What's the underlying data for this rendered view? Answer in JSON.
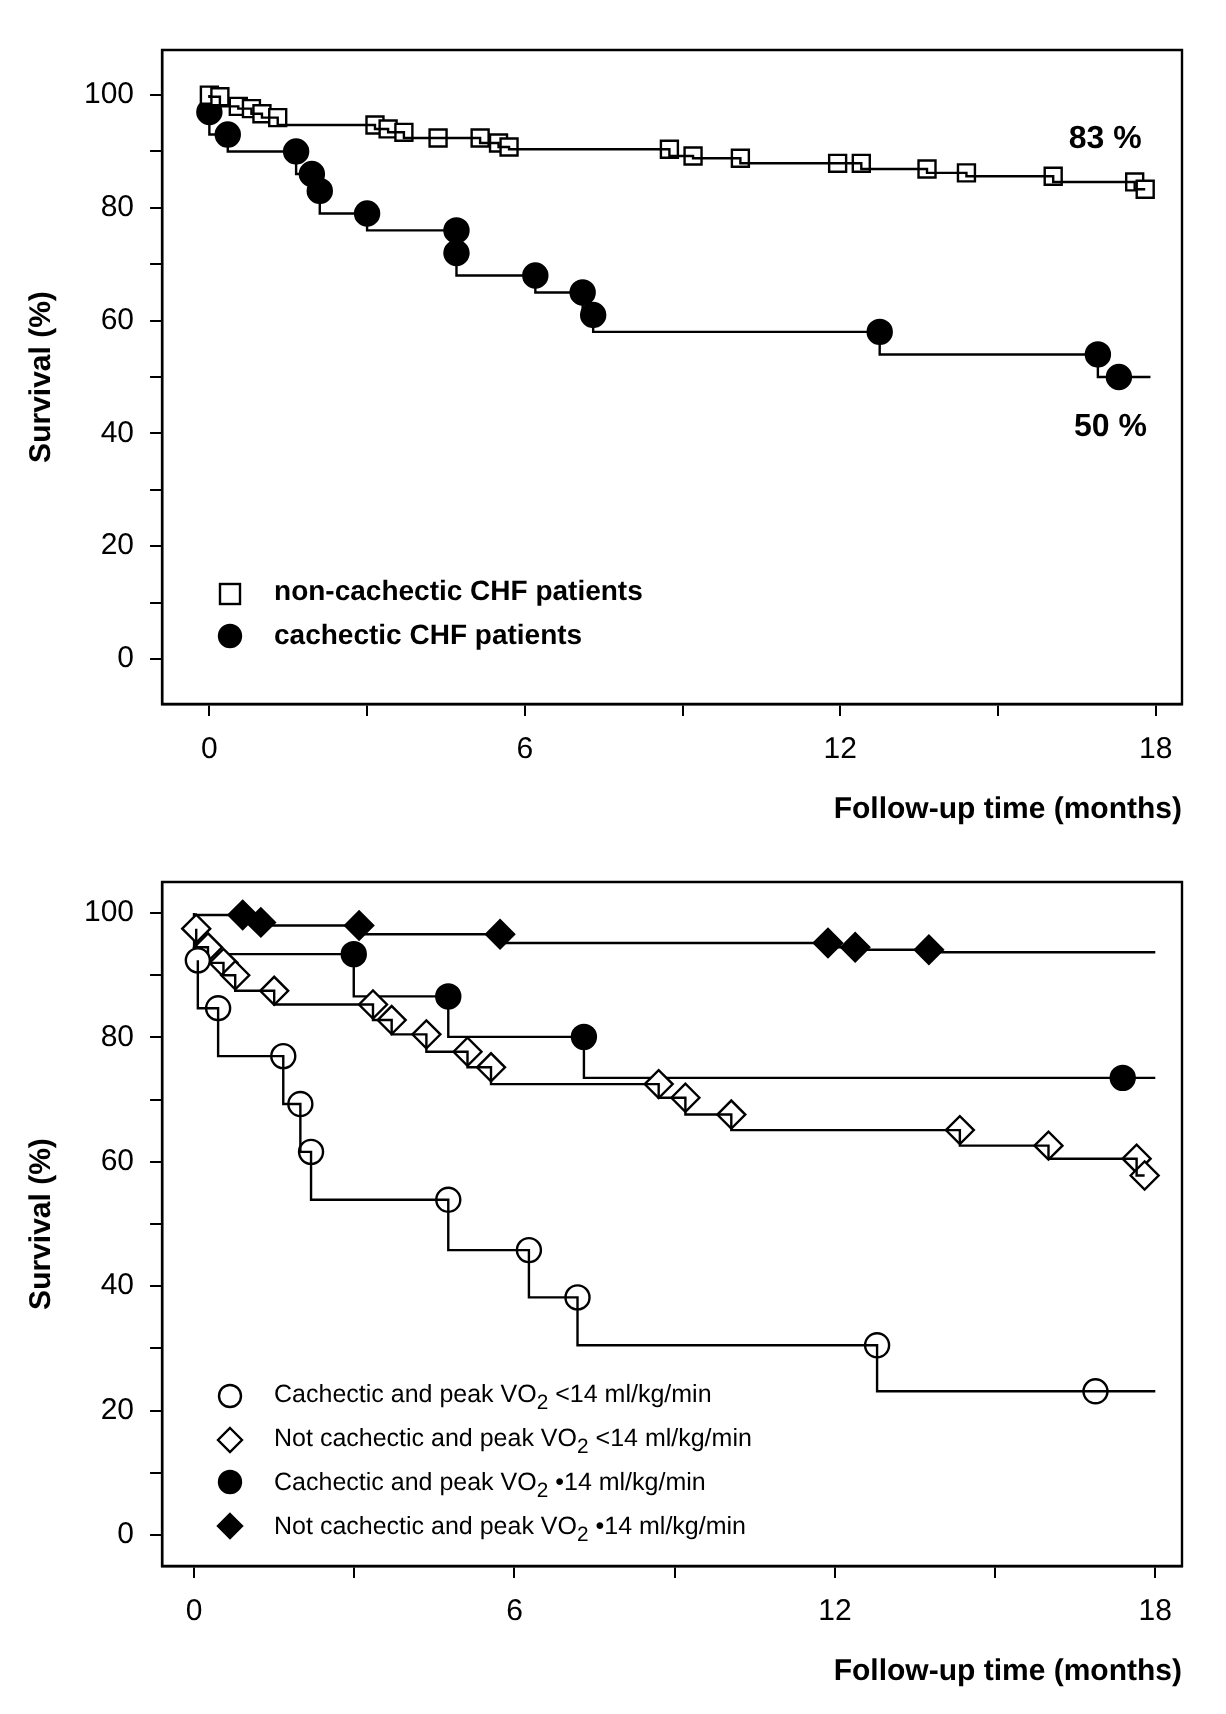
{
  "chart_data": [
    {
      "type": "step",
      "ylabel": "Survival (%)",
      "xlabel": "Follow-up time (months)",
      "xlim": [
        -0.9,
        18.5
      ],
      "ylim": [
        -8,
        108
      ],
      "xticks": [
        0,
        {
          "value": 3,
          "label": null
        },
        6,
        {
          "value": 9,
          "label": null
        },
        12,
        {
          "value": 15,
          "label": null
        },
        18
      ],
      "yticks": [
        0,
        {
          "value": 10,
          "label": null
        },
        20,
        {
          "value": 30,
          "label": null
        },
        40,
        {
          "value": 50,
          "label": null
        },
        60,
        {
          "value": 70,
          "label": null
        },
        80,
        {
          "value": 90,
          "label": null
        },
        100
      ],
      "grid": false,
      "legend": "bottom left",
      "annotations": [
        "83 %",
        "50 %"
      ],
      "series": [
        {
          "color": "#000000",
          "marker": "none",
          "x": [
            0,
            0.2,
            0.55,
            0.8,
            1.0,
            1.3,
            3.15,
            3.4,
            3.7,
            4.35,
            5.15,
            5.5,
            5.7,
            8.75,
            9.2,
            10.1,
            11.95,
            12.4,
            13.65,
            14.4,
            16.05,
            17.6,
            17.8
          ],
          "values": [
            100,
            99.7,
            98,
            97.6,
            96.7,
            96,
            94.7,
            94,
            93.4,
            92.4,
            92.4,
            91.5,
            90.8,
            90.4,
            89.2,
            88.8,
            87.9,
            87.9,
            86.9,
            86.2,
            85.6,
            84.6,
            83.3
          ]
        },
        {
          "type": "scatter",
          "name": "non-cachectic CHF patients",
          "color": "#ffffff",
          "marker": "square",
          "x": [
            0,
            0.2,
            0.55,
            0.8,
            1.0,
            1.3,
            3.15,
            3.4,
            3.7,
            4.35,
            5.15,
            5.5,
            5.7,
            8.75,
            9.2,
            10.1,
            11.95,
            12.4,
            13.65,
            14.4,
            16.05,
            17.6,
            17.8
          ],
          "values": [
            100,
            99.7,
            98,
            97.6,
            96.7,
            96,
            94.7,
            94,
            93.4,
            92.4,
            92.4,
            91.5,
            90.8,
            90.4,
            89.2,
            88.8,
            87.9,
            87.9,
            86.9,
            86.2,
            85.6,
            84.6,
            83.3
          ]
        },
        {
          "color": "#000000",
          "marker": "none",
          "x": [
            0,
            0.35,
            1.65,
            1.95,
            2.1,
            3.0,
            4.7,
            4.7,
            6.2,
            7.1,
            7.3,
            12.75,
            16.9,
            17.3,
            17.9
          ],
          "values": [
            97,
            93,
            90,
            86,
            83,
            79,
            76,
            72,
            68,
            65,
            61,
            58,
            54,
            50,
            50
          ]
        },
        {
          "type": "scatter",
          "name": "cachectic CHF patients",
          "color": "#000000",
          "marker": "circle",
          "x": [
            0,
            0.35,
            1.65,
            1.95,
            2.1,
            3.0,
            4.7,
            4.7,
            6.2,
            7.1,
            7.3,
            12.75,
            16.9,
            17.3
          ],
          "values": [
            97,
            93,
            90,
            86,
            83,
            79,
            76,
            72,
            68,
            65,
            61,
            58,
            54,
            50
          ]
        }
      ]
    },
    {
      "type": "step",
      "ylabel": "Survival (%)",
      "xlabel": "Follow-up time (months)",
      "xlim": [
        -0.6,
        18.5
      ],
      "ylim": [
        -5,
        105
      ],
      "xticks": [
        0,
        {
          "value": 3,
          "label": null
        },
        6,
        {
          "value": 9,
          "label": null
        },
        12,
        {
          "value": 15,
          "label": null
        },
        18
      ],
      "yticks": [
        0,
        {
          "value": 10,
          "label": null
        },
        20,
        {
          "value": 30,
          "label": null
        },
        40,
        {
          "value": 50,
          "label": null
        },
        60,
        {
          "value": 70,
          "label": null
        },
        80,
        {
          "value": 90,
          "label": null
        },
        100
      ],
      "grid": false,
      "legend": "bottom left",
      "series": [
        {
          "color": "#000000",
          "marker": "none",
          "x": [
            0.07,
            0.45,
            1.67,
            1.99,
            2.19,
            4.76,
            6.27,
            7.18,
            12.79,
            16.88,
            18
          ],
          "values": [
            92.4,
            84.7,
            77,
            69.3,
            61.6,
            53.9,
            45.8,
            38.2,
            30.5,
            23.1,
            23.1
          ]
        },
        {
          "type": "scatter",
          "name": "Cachectic and peak VO$_{2}$ <14 ml/kg/min",
          "color": "#ffffff",
          "marker": "circle",
          "x": [
            0.07,
            0.45,
            1.67,
            1.99,
            2.19,
            4.76,
            6.27,
            7.18,
            12.79,
            16.88
          ],
          "values": [
            92.4,
            84.7,
            77,
            69.3,
            61.6,
            53.9,
            45.8,
            38.2,
            30.5,
            23.1
          ]
        },
        {
          "color": "#000000",
          "marker": "none",
          "x": [
            0.04,
            0.26,
            0.55,
            0.77,
            1.5,
            3.35,
            3.7,
            4.35,
            5.12,
            5.56,
            8.7,
            9.2,
            10.06,
            14.34,
            16.0,
            17.65,
            17.8
          ],
          "values": [
            97.5,
            94.5,
            92,
            90,
            87.5,
            85.3,
            82.8,
            80.5,
            77.7,
            75.2,
            72.5,
            70.3,
            67.6,
            65.1,
            62.6,
            60.5,
            57.8
          ]
        },
        {
          "type": "scatter",
          "name": "Not cachectic and peak VO$_{2}$ <14 ml/kg/min",
          "color": "#ffffff",
          "marker": "diamond",
          "x": [
            0.04,
            0.26,
            0.55,
            0.77,
            1.5,
            3.35,
            3.7,
            4.35,
            5.12,
            5.56,
            8.7,
            9.2,
            10.06,
            14.34,
            16.0,
            17.65,
            17.8
          ],
          "values": [
            97.5,
            94.5,
            92,
            90,
            87.5,
            85.3,
            82.8,
            80.5,
            77.7,
            75.2,
            72.5,
            70.3,
            67.6,
            65.1,
            62.6,
            60.5,
            57.8
          ]
        },
        {
          "color": "#000000",
          "marker": "none",
          "x": [
            0,
            2.99,
            4.76,
            7.3,
            17.39,
            18
          ],
          "values": [
            100,
            93.4,
            86.6,
            80.1,
            73.5,
            73.5
          ]
        },
        {
          "type": "scatter",
          "name": "Cachectic and peak VO$_{2}$ •14 ml/kg/min",
          "color": "#000000",
          "marker": "circle",
          "x": [
            2.99,
            4.76,
            7.3,
            17.39
          ],
          "values": [
            93.4,
            86.6,
            80.1,
            73.5
          ]
        },
        {
          "color": "#000000",
          "marker": "none",
          "x": [
            0,
            0.91,
            1.25,
            3.09,
            5.73,
            11.87,
            12.38,
            13.76,
            18
          ],
          "values": [
            100,
            99.7,
            98.5,
            98,
            96.6,
            95.2,
            94.5,
            94.1,
            93.7
          ]
        },
        {
          "type": "scatter",
          "name": "Not cachectic and peak VO$_{2}$ •14 ml/kg/min",
          "color": "#000000",
          "marker": "diamond",
          "x": [
            0.91,
            1.25,
            3.09,
            5.73,
            11.87,
            12.38,
            13.76
          ],
          "values": [
            99.7,
            98.5,
            98,
            96.6,
            95.2,
            94.5,
            94.1
          ]
        }
      ]
    }
  ]
}
